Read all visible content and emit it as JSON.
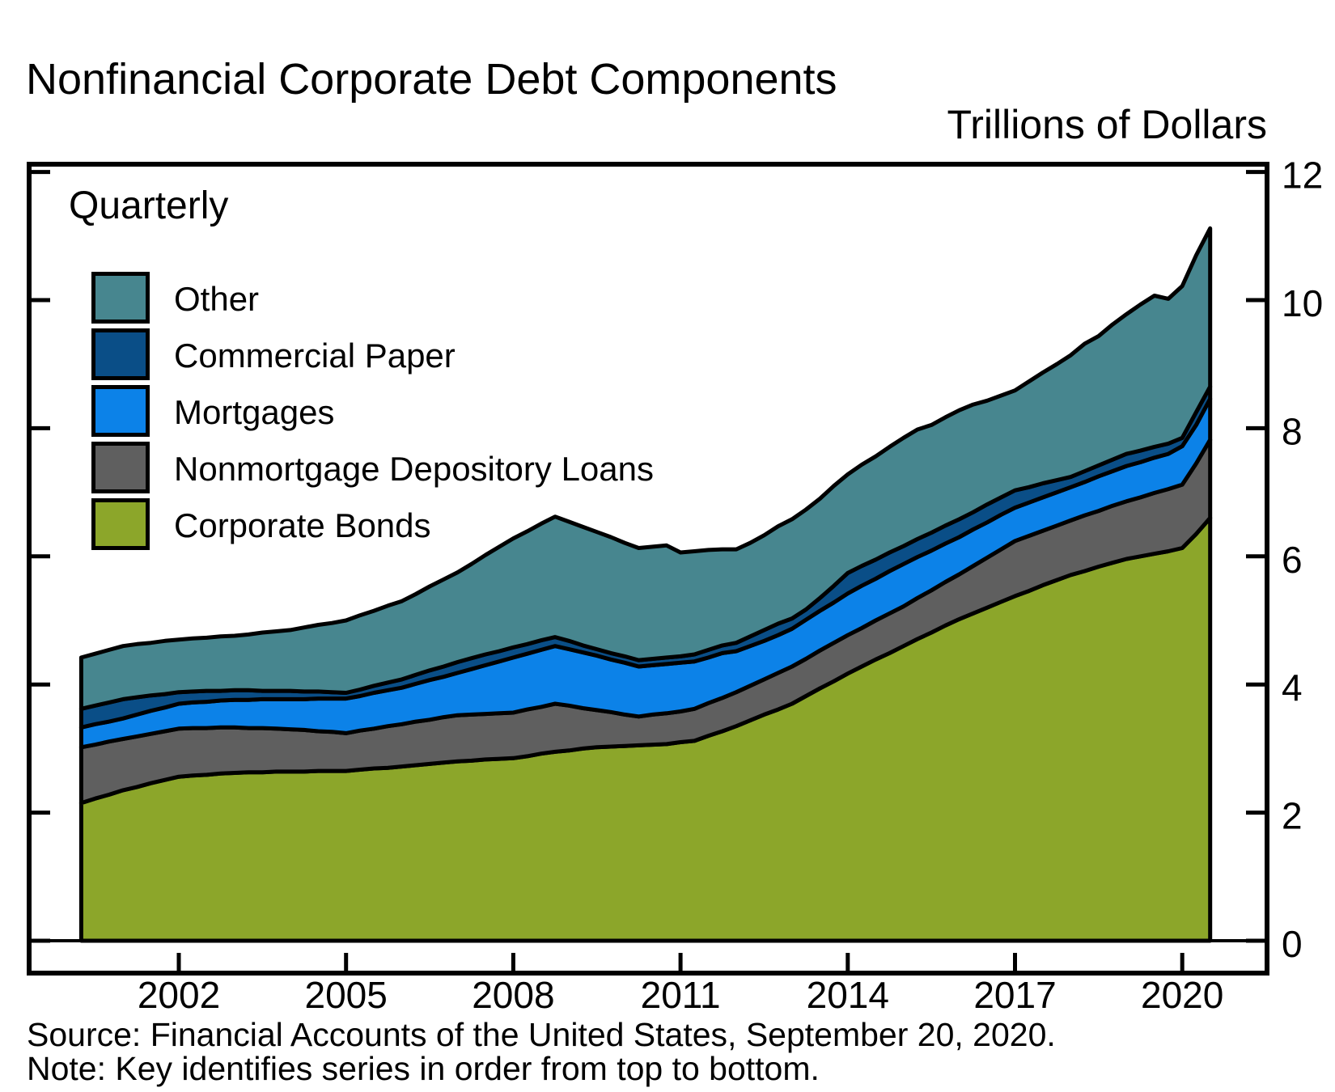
{
  "title": "Nonfinancial Corporate Debt Components",
  "units_label": "Trillions of Dollars",
  "frequency_label": "Quarterly",
  "legend": {
    "items": [
      {
        "label": "Other",
        "color": "#47868F"
      },
      {
        "label": "Commercial Paper",
        "color": "#0A4E87"
      },
      {
        "label": "Mortgages",
        "color": "#0C82E8"
      },
      {
        "label": "Nonmortgage Depository Loans",
        "color": "#5F5F5F"
      },
      {
        "label": "Corporate Bonds",
        "color": "#8CA62A"
      }
    ]
  },
  "footer": {
    "source": "Source: Financial Accounts of the United States, September 20, 2020.",
    "note": "Note: Key identifies series in order from top to bottom."
  },
  "axes": {
    "y_ticks": [
      0,
      2,
      4,
      6,
      8,
      10,
      12
    ],
    "x_ticks": [
      2002,
      2005,
      2008,
      2011,
      2014,
      2017,
      2020
    ]
  },
  "chart_data": {
    "type": "area",
    "stacked": true,
    "frequency": "quarterly",
    "title": "Nonfinancial Corporate Debt Components",
    "ylabel": "Trillions of Dollars",
    "ylim": [
      0,
      12
    ],
    "grid": false,
    "legend_position": "top-left",
    "x_start": 2000.25,
    "x_step": 0.25,
    "x_end": 2020.5,
    "series": [
      {
        "name": "Corporate Bonds",
        "color": "#8CA62A",
        "values": [
          2.15,
          2.22,
          2.28,
          2.35,
          2.4,
          2.46,
          2.51,
          2.56,
          2.58,
          2.59,
          2.61,
          2.62,
          2.63,
          2.63,
          2.64,
          2.64,
          2.64,
          2.65,
          2.65,
          2.65,
          2.67,
          2.69,
          2.7,
          2.72,
          2.74,
          2.76,
          2.78,
          2.8,
          2.81,
          2.83,
          2.84,
          2.85,
          2.88,
          2.92,
          2.95,
          2.97,
          3.0,
          3.02,
          3.03,
          3.04,
          3.05,
          3.06,
          3.07,
          3.1,
          3.12,
          3.2,
          3.27,
          3.35,
          3.44,
          3.53,
          3.61,
          3.7,
          3.82,
          3.94,
          4.05,
          4.17,
          4.28,
          4.39,
          4.49,
          4.6,
          4.71,
          4.81,
          4.92,
          5.02,
          5.11,
          5.2,
          5.29,
          5.38,
          5.46,
          5.55,
          5.63,
          5.71,
          5.77,
          5.84,
          5.9,
          5.96,
          6.0,
          6.04,
          6.08,
          6.13,
          6.35,
          6.6
        ]
      },
      {
        "name": "Nonmortgage Depository Loans",
        "color": "#5F5F5F",
        "values": [
          0.87,
          0.84,
          0.83,
          0.8,
          0.79,
          0.77,
          0.76,
          0.75,
          0.74,
          0.73,
          0.72,
          0.71,
          0.69,
          0.69,
          0.67,
          0.66,
          0.65,
          0.62,
          0.61,
          0.59,
          0.61,
          0.62,
          0.65,
          0.66,
          0.68,
          0.69,
          0.71,
          0.72,
          0.72,
          0.71,
          0.71,
          0.71,
          0.73,
          0.73,
          0.75,
          0.7,
          0.63,
          0.58,
          0.54,
          0.49,
          0.45,
          0.47,
          0.48,
          0.48,
          0.5,
          0.51,
          0.52,
          0.53,
          0.54,
          0.55,
          0.57,
          0.58,
          0.58,
          0.59,
          0.6,
          0.6,
          0.6,
          0.61,
          0.62,
          0.62,
          0.64,
          0.66,
          0.68,
          0.7,
          0.74,
          0.78,
          0.82,
          0.86,
          0.86,
          0.85,
          0.85,
          0.85,
          0.87,
          0.87,
          0.89,
          0.9,
          0.92,
          0.95,
          0.97,
          0.99,
          1.1,
          1.22
        ]
      },
      {
        "name": "Mortgages",
        "color": "#0C82E8",
        "values": [
          0.31,
          0.32,
          0.31,
          0.32,
          0.34,
          0.36,
          0.37,
          0.39,
          0.4,
          0.41,
          0.42,
          0.43,
          0.44,
          0.45,
          0.46,
          0.47,
          0.48,
          0.51,
          0.52,
          0.54,
          0.54,
          0.56,
          0.56,
          0.57,
          0.59,
          0.62,
          0.63,
          0.66,
          0.71,
          0.76,
          0.81,
          0.86,
          0.87,
          0.89,
          0.9,
          0.88,
          0.87,
          0.85,
          0.82,
          0.81,
          0.78,
          0.77,
          0.77,
          0.76,
          0.74,
          0.71,
          0.7,
          0.64,
          0.62,
          0.6,
          0.59,
          0.59,
          0.61,
          0.62,
          0.63,
          0.65,
          0.66,
          0.65,
          0.66,
          0.66,
          0.64,
          0.62,
          0.6,
          0.58,
          0.57,
          0.55,
          0.54,
          0.52,
          0.52,
          0.52,
          0.52,
          0.52,
          0.52,
          0.54,
          0.54,
          0.55,
          0.55,
          0.55,
          0.55,
          0.6,
          0.6,
          0.64
        ]
      },
      {
        "name": "Commercial Paper",
        "color": "#0A4E87",
        "values": [
          0.29,
          0.29,
          0.3,
          0.3,
          0.27,
          0.24,
          0.21,
          0.18,
          0.17,
          0.17,
          0.15,
          0.15,
          0.15,
          0.13,
          0.13,
          0.13,
          0.12,
          0.11,
          0.1,
          0.09,
          0.1,
          0.11,
          0.12,
          0.13,
          0.14,
          0.15,
          0.16,
          0.17,
          0.17,
          0.17,
          0.16,
          0.16,
          0.15,
          0.15,
          0.14,
          0.13,
          0.11,
          0.1,
          0.1,
          0.1,
          0.1,
          0.1,
          0.1,
          0.1,
          0.11,
          0.12,
          0.12,
          0.13,
          0.15,
          0.17,
          0.18,
          0.16,
          0.16,
          0.2,
          0.26,
          0.32,
          0.31,
          0.3,
          0.29,
          0.28,
          0.28,
          0.28,
          0.28,
          0.28,
          0.27,
          0.28,
          0.27,
          0.27,
          0.24,
          0.22,
          0.19,
          0.16,
          0.17,
          0.17,
          0.18,
          0.19,
          0.18,
          0.17,
          0.16,
          0.13,
          0.2,
          0.19
        ]
      },
      {
        "name": "Other",
        "color": "#47868F",
        "values": [
          0.8,
          0.81,
          0.82,
          0.83,
          0.83,
          0.82,
          0.83,
          0.82,
          0.83,
          0.83,
          0.85,
          0.85,
          0.87,
          0.91,
          0.93,
          0.95,
          1.0,
          1.04,
          1.08,
          1.13,
          1.16,
          1.17,
          1.2,
          1.22,
          1.26,
          1.31,
          1.36,
          1.4,
          1.47,
          1.55,
          1.63,
          1.7,
          1.76,
          1.82,
          1.88,
          1.86,
          1.85,
          1.83,
          1.81,
          1.77,
          1.75,
          1.75,
          1.75,
          1.62,
          1.61,
          1.56,
          1.5,
          1.46,
          1.46,
          1.48,
          1.52,
          1.55,
          1.56,
          1.55,
          1.56,
          1.54,
          1.58,
          1.61,
          1.65,
          1.69,
          1.71,
          1.68,
          1.69,
          1.7,
          1.68,
          1.62,
          1.59,
          1.56,
          1.65,
          1.73,
          1.81,
          1.9,
          1.99,
          2.02,
          2.11,
          2.18,
          2.28,
          2.36,
          2.26,
          2.37,
          2.45,
          2.47
        ]
      }
    ]
  }
}
